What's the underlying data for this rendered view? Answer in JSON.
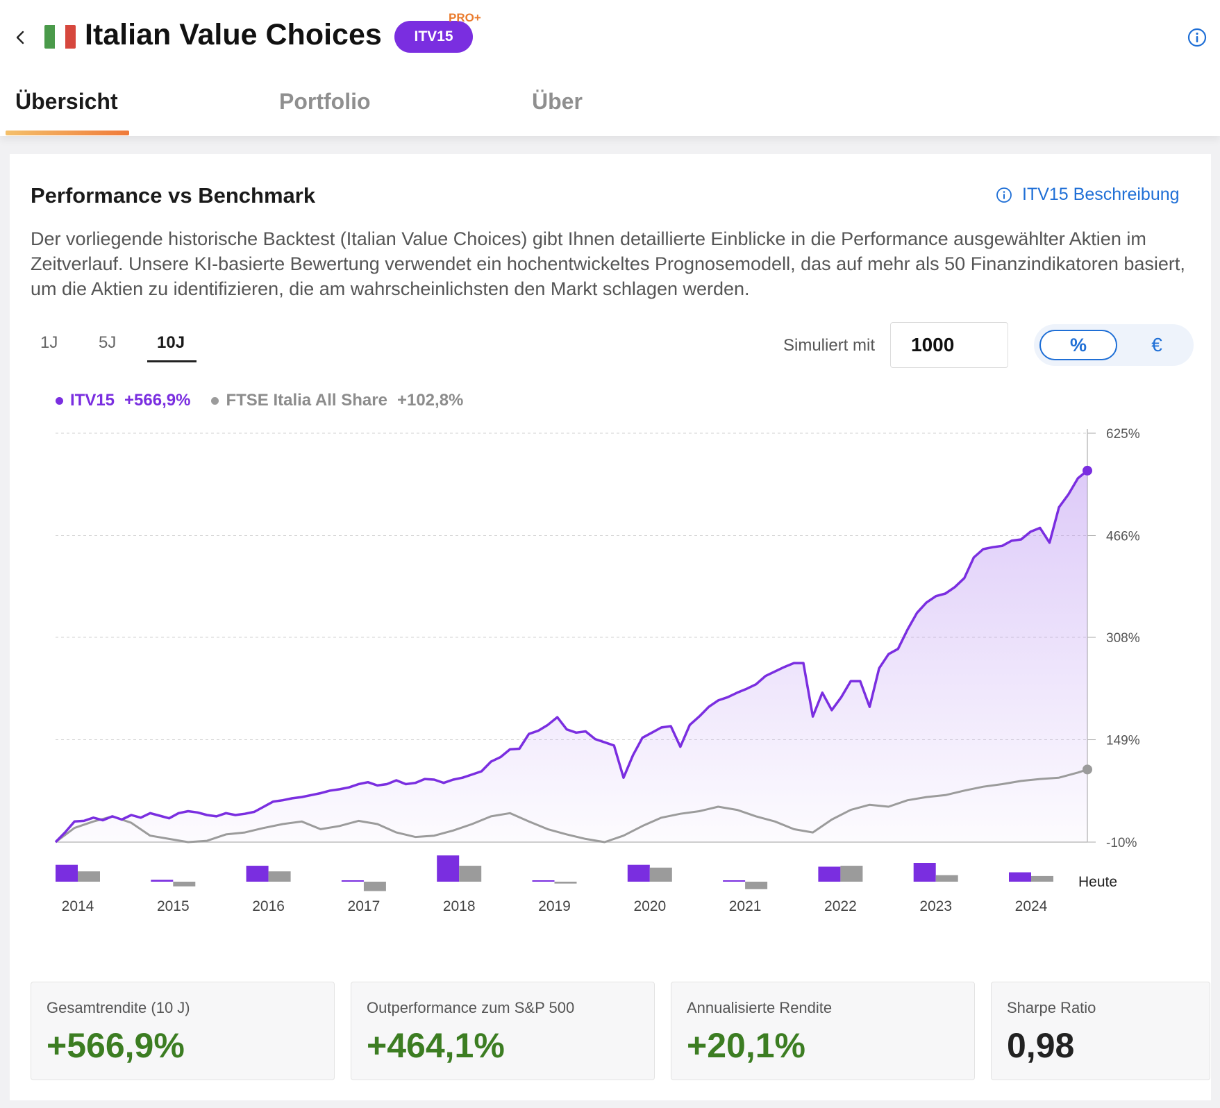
{
  "header": {
    "title": "Italian Value Choices",
    "ticker": "ITV15",
    "badge": "PRO+"
  },
  "tabs": [
    {
      "label": "Übersicht",
      "active": true
    },
    {
      "label": "Portfolio",
      "active": false
    },
    {
      "label": "Über",
      "active": false
    }
  ],
  "section": {
    "title": "Performance vs Benchmark",
    "link_label": "ITV15 Beschreibung",
    "description": "Der vorliegende historische Backtest (Italian Value Choices) gibt Ihnen detaillierte Einblicke in die Performance ausgewählter Aktien im Zeitverlauf. Unsere KI-basierte Bewertung verwendet ein hochentwickeltes Prognosemodell, das auf mehr als 50 Finanzindikatoren basiert, um die Aktien zu identifizieren, die am wahrscheinlichsten den Markt schlagen werden."
  },
  "controls": {
    "ranges": [
      {
        "label": "1J",
        "active": false
      },
      {
        "label": "5J",
        "active": false
      },
      {
        "label": "10J",
        "active": true
      }
    ],
    "sim_label": "Simuliert mit",
    "sim_value": "1000",
    "unit_pct": "%",
    "unit_eur": "€",
    "selected_unit": "%"
  },
  "colors": {
    "itv": "#7a2ee0",
    "ftse": "#9b9b9b",
    "accent": "#1f6fd6",
    "positive": "#3c7d22",
    "flag": [
      "#4a9a4a",
      "#ffffff",
      "#d6473d"
    ]
  },
  "chart_data": {
    "type": "line",
    "y_unit": "%",
    "yticks": [
      625,
      466,
      308,
      149,
      -10
    ],
    "ytick_labels": [
      "625%",
      "466%",
      "308%",
      "149%",
      "-10%"
    ],
    "ylim": [
      -10,
      625
    ],
    "grid": true,
    "end_label": "Heute",
    "series": [
      {
        "name": "ITV15",
        "total_label": "+566,9%",
        "x": [
          2014.0,
          2014.1,
          2014.2,
          2014.3,
          2014.4,
          2014.5,
          2014.6,
          2014.7,
          2014.8,
          2014.9,
          2015.0,
          2015.1,
          2015.2,
          2015.3,
          2015.4,
          2015.5,
          2015.6,
          2015.7,
          2015.8,
          2015.9,
          2016.0,
          2016.1,
          2016.2,
          2016.3,
          2016.4,
          2016.5,
          2016.6,
          2016.7,
          2016.8,
          2016.9,
          2017.0,
          2017.1,
          2017.2,
          2017.3,
          2017.4,
          2017.5,
          2017.6,
          2017.7,
          2017.8,
          2017.9,
          2018.0,
          2018.1,
          2018.2,
          2018.3,
          2018.4,
          2018.5,
          2018.6,
          2018.7,
          2018.8,
          2018.9,
          2019.0,
          2019.1,
          2019.2,
          2019.3,
          2019.4,
          2019.5,
          2019.6,
          2019.7,
          2019.8,
          2019.9,
          2020.0,
          2020.1,
          2020.2,
          2020.3,
          2020.4,
          2020.5,
          2020.6,
          2020.7,
          2020.8,
          2020.9,
          2021.0,
          2021.1,
          2021.2,
          2021.3,
          2021.4,
          2021.5,
          2021.6,
          2021.7,
          2021.8,
          2021.9,
          2022.0,
          2022.1,
          2022.2,
          2022.3,
          2022.4,
          2022.5,
          2022.6,
          2022.7,
          2022.8,
          2022.9,
          2023.0,
          2023.1,
          2023.2,
          2023.3,
          2023.4,
          2023.5,
          2023.6,
          2023.7,
          2023.8,
          2023.9,
          2024.0,
          2024.1,
          2024.2,
          2024.3,
          2024.4,
          2024.5,
          2024.6,
          2024.7,
          2024.8,
          2024.9
        ],
        "values": [
          -10,
          5,
          22,
          23,
          28,
          24,
          30,
          25,
          32,
          28,
          35,
          31,
          27,
          35,
          38,
          36,
          32,
          30,
          35,
          32,
          34,
          37,
          45,
          53,
          55,
          58,
          60,
          63,
          66,
          70,
          72,
          75,
          80,
          83,
          78,
          80,
          86,
          80,
          82,
          88,
          87,
          82,
          87,
          90,
          95,
          100,
          115,
          122,
          134,
          135,
          158,
          163,
          172,
          184,
          165,
          160,
          162,
          150,
          145,
          140,
          90,
          125,
          152,
          160,
          168,
          170,
          138,
          172,
          185,
          200,
          210,
          215,
          222,
          228,
          235,
          248,
          255,
          262,
          268,
          268,
          185,
          222,
          195,
          215,
          240,
          240,
          200,
          260,
          282,
          290,
          320,
          346,
          362,
          372,
          376,
          386,
          400,
          432,
          445,
          448,
          450,
          458,
          460,
          472,
          478,
          455,
          510,
          530,
          555,
          566.9
        ],
        "year_returns": [
          18,
          2,
          17,
          1,
          28,
          1,
          18,
          1,
          16,
          20,
          10
        ]
      },
      {
        "name": "FTSE Italia All Share",
        "total_label": "+102,8%",
        "x": [
          2014.0,
          2014.2,
          2014.4,
          2014.6,
          2014.8,
          2015.0,
          2015.2,
          2015.4,
          2015.6,
          2015.8,
          2016.0,
          2016.2,
          2016.4,
          2016.6,
          2016.8,
          2017.0,
          2017.2,
          2017.4,
          2017.6,
          2017.8,
          2018.0,
          2018.2,
          2018.4,
          2018.6,
          2018.8,
          2019.0,
          2019.2,
          2019.4,
          2019.6,
          2019.8,
          2020.0,
          2020.2,
          2020.4,
          2020.6,
          2020.8,
          2021.0,
          2021.2,
          2021.4,
          2021.6,
          2021.8,
          2022.0,
          2022.2,
          2022.4,
          2022.6,
          2022.8,
          2023.0,
          2023.2,
          2023.4,
          2023.6,
          2023.8,
          2024.0,
          2024.2,
          2024.4,
          2024.6,
          2024.8,
          2024.9
        ],
        "values": [
          -10,
          12,
          22,
          30,
          20,
          0,
          -5,
          -10,
          -8,
          2,
          5,
          12,
          18,
          22,
          10,
          15,
          23,
          18,
          5,
          -2,
          0,
          8,
          18,
          30,
          35,
          22,
          10,
          2,
          -5,
          -10,
          0,
          15,
          28,
          34,
          38,
          45,
          40,
          30,
          22,
          10,
          5,
          25,
          40,
          48,
          45,
          55,
          60,
          63,
          70,
          76,
          80,
          85,
          88,
          90,
          98,
          102.8
        ],
        "year_returns": [
          11,
          -5,
          11,
          -10,
          17,
          -2,
          15,
          -8,
          17,
          7,
          6
        ]
      }
    ],
    "year_labels": [
      "2014",
      "2015",
      "2016",
      "2017",
      "2018",
      "2019",
      "2020",
      "2021",
      "2022",
      "2023",
      "2024"
    ]
  },
  "kpis": [
    {
      "label": "Gesamtrendite (10 J)",
      "value": "+566,9%",
      "tone": "pos"
    },
    {
      "label": "Outperformance zum S&P 500",
      "value": "+464,1%",
      "tone": "pos"
    },
    {
      "label": "Annualisierte Rendite",
      "value": "+20,1%",
      "tone": "pos"
    },
    {
      "label": "Sharpe Ratio",
      "value": "0,98",
      "tone": "neu"
    }
  ]
}
